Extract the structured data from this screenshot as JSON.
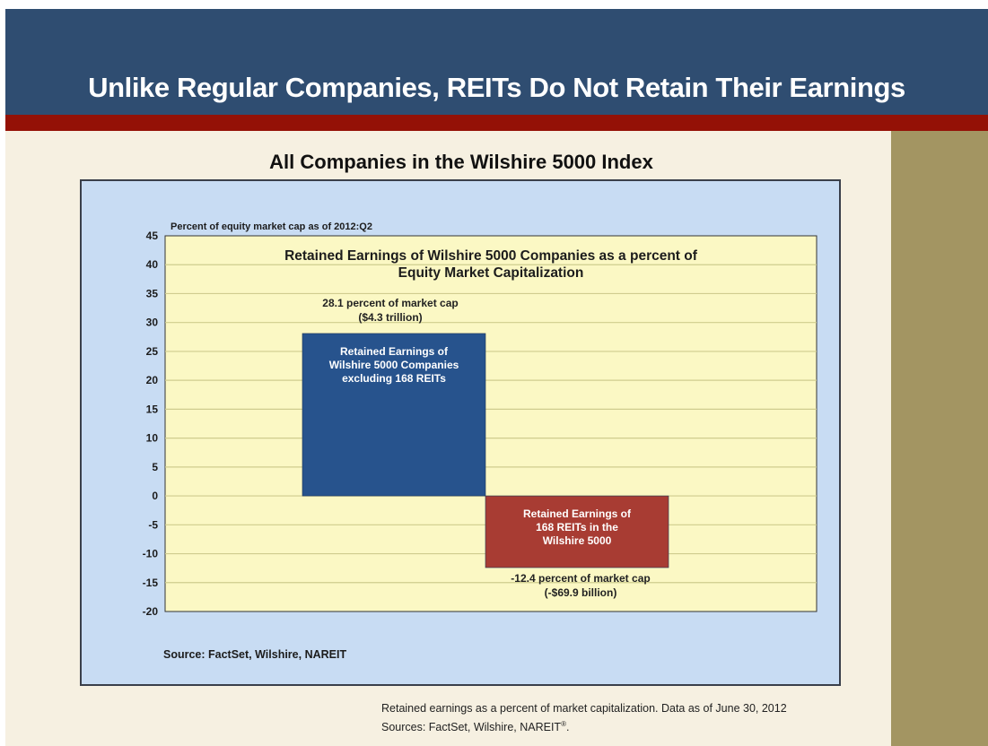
{
  "slide": {
    "title": "Unlike Regular Companies, REITs Do Not Retain Their Earnings",
    "chart_heading": "All Companies in the Wilshire 5000 Index",
    "footnote_line1": "Retained earnings as a percent of market capitalization. Data as of June 30, 2012",
    "footnote_line2": "Sources: FactSet, Wilshire, NAREIT",
    "footnote_mark": "®",
    "footnote_end": "."
  },
  "chart_data": {
    "type": "bar",
    "title_lines": [
      "Retained Earnings of Wilshire 5000 Companies as a percent of",
      "Equity Market Capitalization"
    ],
    "ylabel": "Percent of equity market cap as of 2012:Q2",
    "ylim": [
      -20,
      45
    ],
    "yticks": [
      45,
      40,
      35,
      30,
      25,
      20,
      15,
      10,
      5,
      0,
      -5,
      -10,
      -15,
      -20
    ],
    "grid": true,
    "source": "Source: FactSet, Wilshire, NAREIT",
    "bars": [
      {
        "label_lines": [
          "Retained Earnings of",
          "Wilshire 5000 Companies",
          "excluding 168 REITs"
        ],
        "value": 28.1,
        "color": "#27538d",
        "annotation_lines": [
          "28.1 percent of market cap",
          "($4.3 trillion)"
        ]
      },
      {
        "label_lines": [
          "Retained Earnings of",
          "168 REITs in the",
          "Wilshire 5000"
        ],
        "value": -12.4,
        "color": "#a83c33",
        "annotation_lines": [
          "-12.4 percent of market cap",
          "(-$69.9 billion)"
        ]
      }
    ]
  },
  "colors": {
    "header_blue": "#2f4d71",
    "header_red": "#941106",
    "slide_bg": "#f6f0e1",
    "olive": "#a39562",
    "chart_frame": "#c8dcf3",
    "plot_bg": "#fbf8c4",
    "grid": "#cfcc8e"
  }
}
